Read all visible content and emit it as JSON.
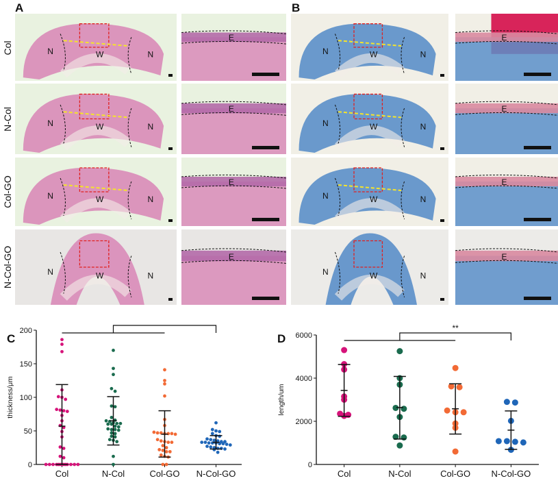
{
  "panels": {
    "A": "A",
    "B": "B",
    "C": "C",
    "D": "D"
  },
  "rows": [
    "Col",
    "N-Col",
    "Col-GO",
    "N-Col-GO"
  ],
  "region_labels": {
    "normal": "N",
    "wound": "W",
    "epidermis": "E"
  },
  "colors": {
    "he_tissue": "#d98bb8",
    "masson_tissue": "#5b8fc9",
    "col": "#d6137a",
    "ncol": "#1a6b4e",
    "colgo": "#f26a35",
    "ncolgo": "#1f66b8",
    "highlight_box": "#e02020",
    "arrow": "#f5e42a"
  },
  "significance": "**",
  "chart_data": [
    {
      "type": "scatter",
      "panel": "C",
      "ylabel": "thickness/μm",
      "ylim": [
        0,
        200
      ],
      "yticks": [
        0,
        50,
        100,
        150,
        200
      ],
      "categories": [
        "Col",
        "N-Col",
        "Col-GO",
        "N-Col-GO"
      ],
      "series": [
        {
          "values": [
            186,
            179,
            168,
            111,
            101,
            100,
            97,
            82,
            81,
            80,
            79,
            73,
            65,
            58,
            55,
            49,
            41,
            26,
            24,
            12,
            10,
            0,
            0,
            0,
            0,
            0,
            0,
            0,
            0,
            0,
            0,
            0,
            0,
            0
          ],
          "mean": 57,
          "sd_low": 0,
          "sd_high": 119
        },
        {
          "values": [
            170,
            143,
            134,
            113,
            109,
            87,
            86,
            70,
            66,
            65,
            64,
            62,
            61,
            61,
            60,
            60,
            57,
            56,
            53,
            52,
            52,
            51,
            47,
            46,
            42,
            41,
            37,
            36,
            34,
            12,
            0
          ],
          "mean": 65,
          "sd_low": 29,
          "sd_high": 101
        },
        {
          "values": [
            141,
            125,
            120,
            102,
            67,
            58,
            48,
            47,
            47,
            46,
            46,
            45,
            46,
            37,
            35,
            34,
            33,
            33,
            28,
            25,
            22,
            21,
            19,
            19,
            14,
            12,
            11,
            0,
            0
          ],
          "mean": 45,
          "sd_low": 11,
          "sd_high": 80
        },
        {
          "values": [
            62,
            52,
            50,
            49,
            46,
            43,
            42,
            38,
            37,
            36,
            35,
            34,
            34,
            33,
            33,
            32,
            32,
            32,
            31,
            31,
            30,
            29,
            27,
            26,
            25,
            24,
            24,
            23,
            22,
            18
          ],
          "mean": 33,
          "sd_low": 23,
          "sd_high": 43
        }
      ],
      "comparison": {
        "groups": [
          "Col",
          "N-Col",
          "Col-GO"
        ],
        "vs": "N-Col-GO",
        "label": "**"
      }
    },
    {
      "type": "scatter",
      "panel": "D",
      "ylabel": "length/um",
      "ylim": [
        0,
        6000
      ],
      "yticks": [
        0,
        2000,
        4000,
        6000
      ],
      "categories": [
        "Col",
        "N-Col",
        "Col-GO",
        "N-Col-GO"
      ],
      "series": [
        {
          "values": [
            5300,
            4650,
            4400,
            3150,
            3000,
            2350,
            2250,
            2300
          ],
          "mean": 3430,
          "sd_low": 2230,
          "sd_high": 4630
        },
        {
          "values": [
            5250,
            4000,
            3700,
            2620,
            2580,
            2200,
            1280,
            1250,
            880
          ],
          "mean": 2640,
          "sd_low": 1180,
          "sd_high": 4080
        },
        {
          "values": [
            4470,
            3620,
            3580,
            2500,
            2420,
            2420,
            1900,
            1700,
            600
          ],
          "mean": 2580,
          "sd_low": 1410,
          "sd_high": 3740
        },
        {
          "values": [
            2900,
            2870,
            2020,
            1080,
            1050,
            1020,
            1080,
            680
          ],
          "mean": 1590,
          "sd_low": 700,
          "sd_high": 2480
        }
      ],
      "comparison": {
        "groups": [
          "Col",
          "N-Col",
          "Col-GO"
        ],
        "vs": "N-Col-GO",
        "label": "**"
      }
    }
  ]
}
